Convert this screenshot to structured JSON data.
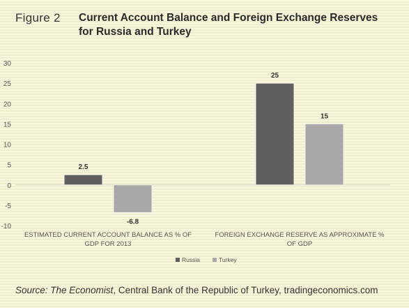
{
  "figure_label": "Figure 2",
  "title_line1": "Current Account Balance and Foreign Exchange Reserves",
  "title_line2": "for Russia and Turkey",
  "source": {
    "prefix": "Source: ",
    "publication": "The Economist",
    "rest": ", Central Bank of the Republic of Turkey, tradingeconomics.com"
  },
  "chart_data": {
    "type": "bar",
    "categories": [
      [
        "ESTIMATED CURRENT ACCOUNT BALANCE AS % OF",
        "GDP FOR 2013"
      ],
      [
        "FOREIGN EXCHANGE RESERVE AS APPROXIMATE %",
        "OF GDP"
      ]
    ],
    "series": [
      {
        "name": "Russia",
        "values": [
          2.5,
          25
        ],
        "color": "#5f5f5f"
      },
      {
        "name": "Turkey",
        "values": [
          -6.8,
          15
        ],
        "color": "#a8a8a8"
      }
    ],
    "data_labels": [
      [
        "2.5",
        "25"
      ],
      [
        "-6.8",
        "15"
      ]
    ],
    "ylim": [
      -10,
      30
    ],
    "yticks": [
      -10,
      -5,
      0,
      5,
      10,
      15,
      20,
      25,
      30
    ],
    "grid": false,
    "legend_position": "bottom"
  }
}
